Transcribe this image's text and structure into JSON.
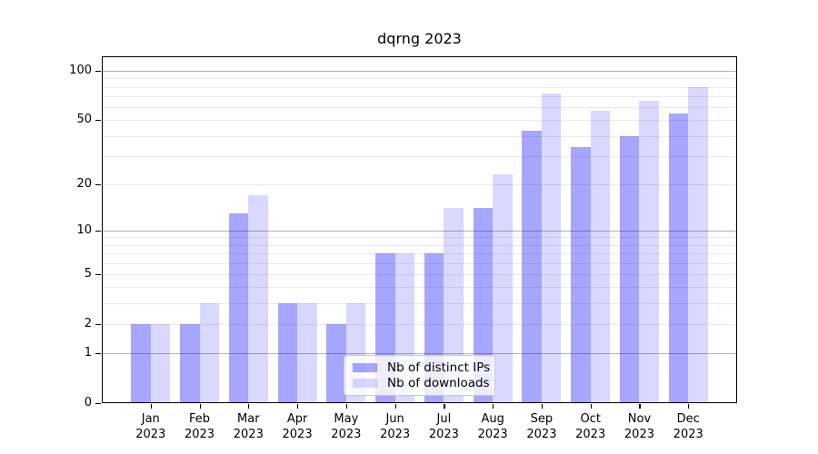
{
  "title": "dqrng 2023",
  "chart_data": {
    "type": "bar",
    "title": "dqrng 2023",
    "y_scale": "log1p",
    "ylim": [
      0,
      122
    ],
    "xlabel": "",
    "ylabel": "",
    "grid": "on",
    "legend_position": "inside-bottom-center",
    "categories": [
      "Jan 2023",
      "Feb 2023",
      "Mar 2023",
      "Apr 2023",
      "May 2023",
      "Jun 2023",
      "Jul 2023",
      "Aug 2023",
      "Sep 2023",
      "Oct 2023",
      "Nov 2023",
      "Dec 2023"
    ],
    "series": [
      {
        "name": "Nb of distinct IPs",
        "color": "rgba(0,0,255,0.35)",
        "values": [
          2,
          2,
          13,
          3,
          2,
          7,
          7,
          14,
          43,
          34,
          40,
          55
        ]
      },
      {
        "name": "Nb of downloads",
        "color": "rgba(0,0,255,0.15)",
        "values": [
          2,
          3,
          17,
          3,
          3,
          7,
          14,
          23,
          73,
          57,
          66,
          80
        ]
      }
    ],
    "y_tick_labels": [
      "100",
      "50",
      "20",
      "10",
      "5",
      "2",
      "1",
      "0"
    ],
    "y_tick_values": [
      100,
      50,
      20,
      10,
      5,
      2,
      1,
      0
    ],
    "gridlines": {
      "major": [
        1,
        10,
        100
      ],
      "minor": [
        2,
        3,
        4,
        5,
        6,
        7,
        8,
        9,
        20,
        30,
        40,
        50,
        60,
        70,
        80,
        90
      ]
    }
  },
  "colors": {
    "bar_distinct_ips": "rgba(0,0,255,0.35)",
    "bar_downloads": "rgba(0,0,255,0.15)",
    "major_gridline": "#b0b0b0",
    "minor_gridline": "#e9e9e9",
    "frame": "#000000",
    "legend_border": "#c9c9c9",
    "background": "#ffffff"
  }
}
